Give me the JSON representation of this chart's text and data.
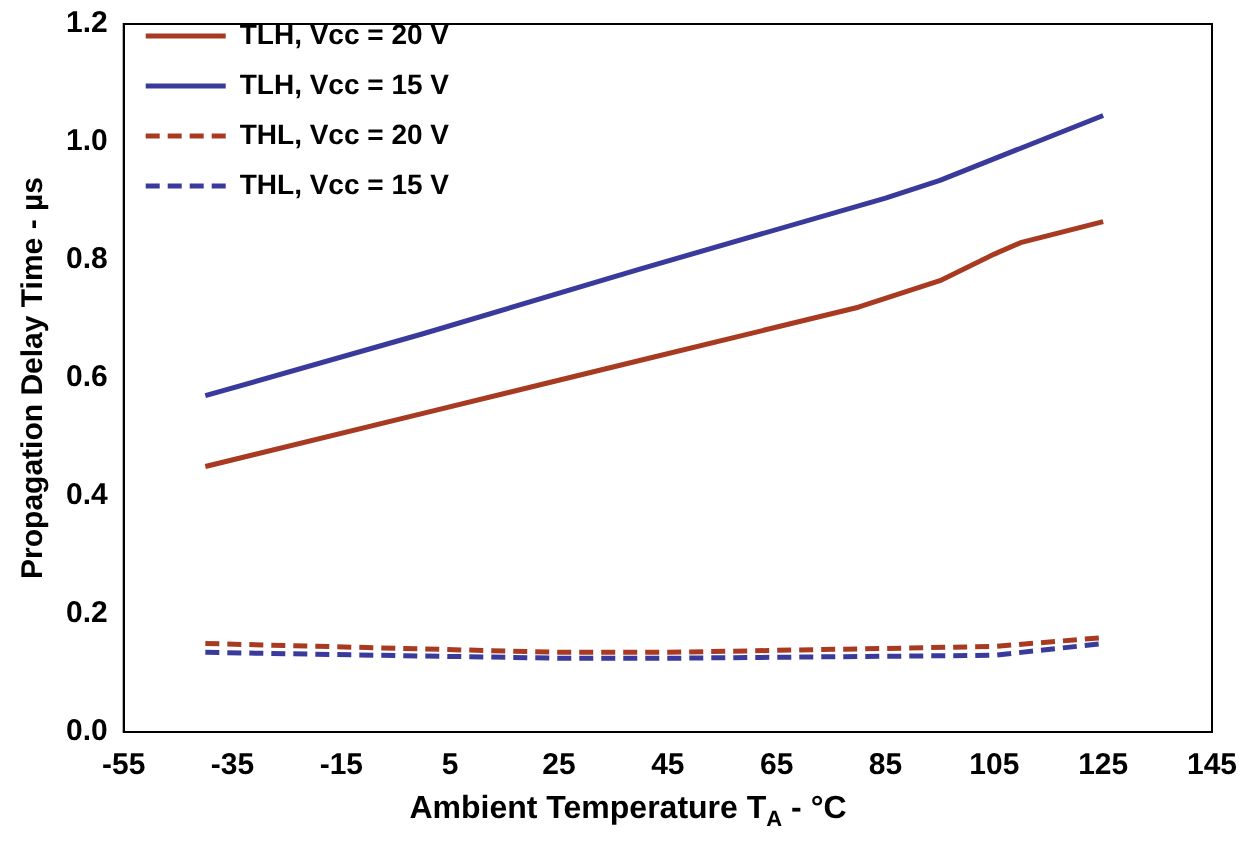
{
  "chart_data": {
    "type": "line",
    "xlabel": "Ambient Temperature T$_{A}$ - °C",
    "ylabel": "Propagation Delay Time - µs",
    "xlim": [
      -55,
      145
    ],
    "xticks": [
      -55,
      -35,
      -15,
      5,
      25,
      45,
      65,
      85,
      105,
      125,
      145
    ],
    "ylim": [
      0,
      1.2
    ],
    "yticks": [
      {
        "value": 0,
        "label": "0.0"
      },
      0.2,
      0.4,
      0.6,
      0.8,
      {
        "value": 1,
        "label": "1.0"
      },
      1.2
    ],
    "grid": false,
    "legend": "top left",
    "marker": "none",
    "series": [
      {
        "name": "TLH, Vcc = 20 V",
        "color": "#a83a22",
        "line_style": "solid",
        "x": [
          -40,
          0,
          40,
          80,
          95,
          105,
          110,
          125
        ],
        "values": [
          0.45,
          0.54,
          0.63,
          0.72,
          0.765,
          0.81,
          0.83,
          0.865
        ]
      },
      {
        "name": "TLH, Vcc = 15 V",
        "color": "#3a3a9c",
        "line_style": "solid",
        "x": [
          -40,
          0,
          40,
          85,
          95,
          125
        ],
        "values": [
          0.57,
          0.675,
          0.785,
          0.905,
          0.935,
          1.045
        ]
      },
      {
        "name": "THL, Vcc = 20 V",
        "color": "#a83a22",
        "line_style": "dashed",
        "x": [
          -40,
          25,
          45,
          105,
          125
        ],
        "values": [
          0.15,
          0.135,
          0.135,
          0.145,
          0.16
        ]
      },
      {
        "name": "THL, Vcc = 15 V",
        "color": "#3a3a9c",
        "line_style": "dashed",
        "x": [
          -40,
          25,
          45,
          105,
          125
        ],
        "values": [
          0.135,
          0.125,
          0.125,
          0.13,
          0.15
        ]
      }
    ]
  }
}
